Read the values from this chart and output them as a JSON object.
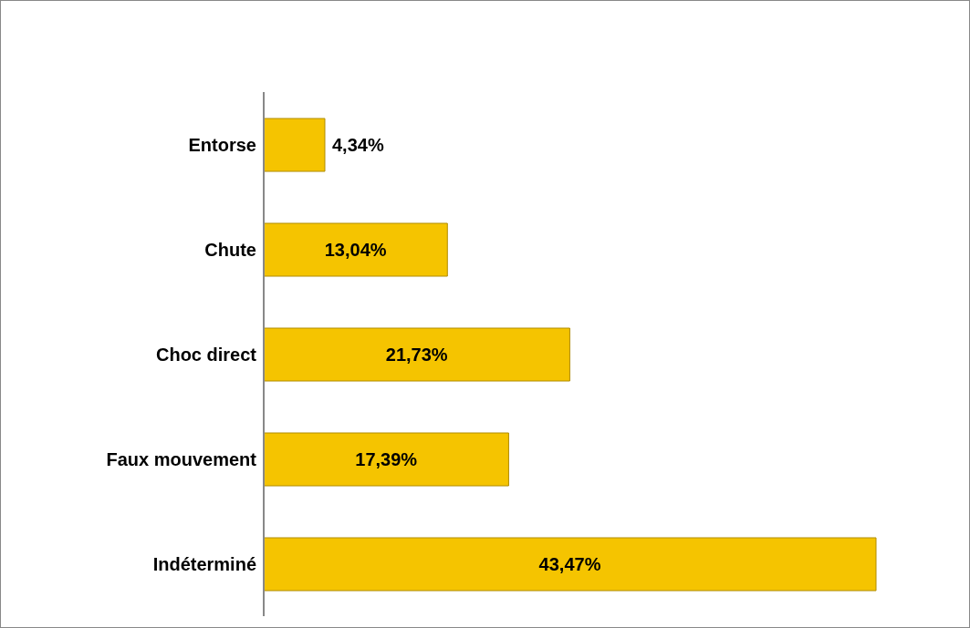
{
  "chart_data": {
    "type": "bar",
    "orientation": "horizontal",
    "categories": [
      "Entorse",
      "Chute",
      "Choc direct",
      "Faux mouvement",
      "Indéterminé"
    ],
    "values": [
      4.34,
      13.04,
      21.73,
      17.39,
      43.47
    ],
    "value_labels": [
      "4,34%",
      "13,04%",
      "21,73%",
      "17,39%",
      "43,47%"
    ],
    "color": "#f5c400",
    "grid": false,
    "legend": false
  }
}
